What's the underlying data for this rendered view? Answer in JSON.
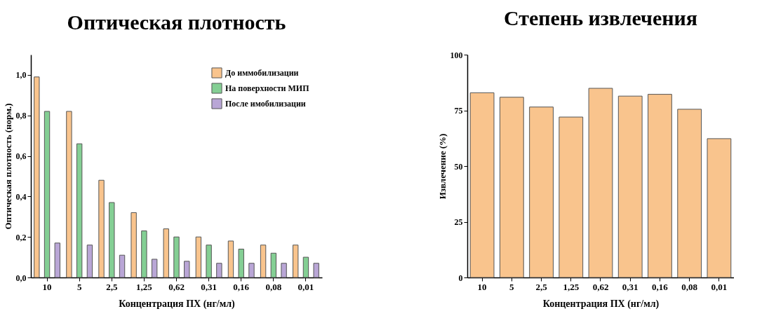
{
  "chart_data": [
    {
      "type": "bar",
      "title": "Оптическая плотность",
      "xlabel": "Концентрация ПХ (нг/мл)",
      "ylabel": "Оптическая плотность (норм.)",
      "categories": [
        "10",
        "5",
        "2,5",
        "1,25",
        "0,62",
        "0,31",
        "0,16",
        "0,08",
        "0,01"
      ],
      "series": [
        {
          "name": "До иммобилизации",
          "color": "#f9c48d",
          "values": [
            0.99,
            0.82,
            0.48,
            0.32,
            0.24,
            0.2,
            0.18,
            0.16,
            0.16
          ]
        },
        {
          "name": "На поверхности МИП",
          "color": "#84cf94",
          "values": [
            0.82,
            0.66,
            0.37,
            0.23,
            0.2,
            0.16,
            0.14,
            0.12,
            0.1
          ]
        },
        {
          "name": "После имобилизации",
          "color": "#b9a6d6",
          "values": [
            0.17,
            0.16,
            0.11,
            0.09,
            0.08,
            0.07,
            0.07,
            0.07,
            0.07
          ]
        }
      ],
      "ylim": [
        0,
        1.1
      ],
      "yticks": [
        {
          "value": 0,
          "label": "0,0"
        },
        {
          "value": 0.2,
          "label": "0,2"
        },
        {
          "value": 0.4,
          "label": "0,4"
        },
        {
          "value": 0.6,
          "label": "0,6"
        },
        {
          "value": 0.8,
          "label": "0,8"
        },
        {
          "value": 1,
          "label": "1,0"
        }
      ],
      "legend": "top right",
      "grid": false
    },
    {
      "type": "bar",
      "title": "Степень извлечения",
      "xlabel": "Концентрация ПХ (нг/мл)",
      "ylabel": "Извлечение (%)",
      "categories": [
        "10",
        "5",
        "2,5",
        "1,25",
        "0,62",
        "0,31",
        "0,16",
        "0,08",
        "0,01"
      ],
      "values": [
        82.9,
        80.9,
        76.5,
        72.0,
        84.9,
        81.4,
        82.2,
        75.5,
        62.3
      ],
      "color": "#f9c48d",
      "ylim": [
        0,
        100
      ],
      "yticks": [
        0,
        25,
        50,
        75,
        100
      ],
      "grid": false
    }
  ]
}
